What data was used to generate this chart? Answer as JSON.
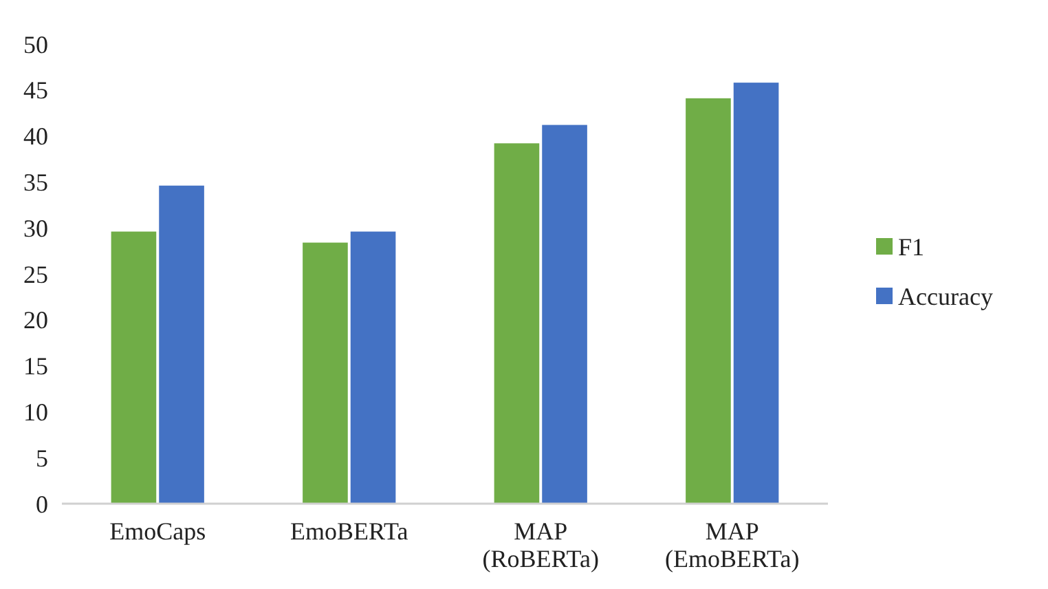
{
  "chart_data": {
    "type": "bar",
    "categories": [
      "EmoCaps",
      "EmoBERTa",
      "MAP\n(RoBERTa)",
      "MAP\n(EmoBERTa)"
    ],
    "series": [
      {
        "name": "F1",
        "color": "#70ad47",
        "values": [
          29.6,
          28.4,
          39.2,
          44.1
        ]
      },
      {
        "name": "Accuracy",
        "color": "#4472c4",
        "values": [
          34.6,
          29.6,
          41.2,
          45.8
        ]
      }
    ],
    "ylim": [
      0,
      50
    ],
    "yticks": [
      0,
      5,
      10,
      15,
      20,
      25,
      30,
      35,
      40,
      45,
      50
    ],
    "grid": false,
    "legend": "right"
  }
}
